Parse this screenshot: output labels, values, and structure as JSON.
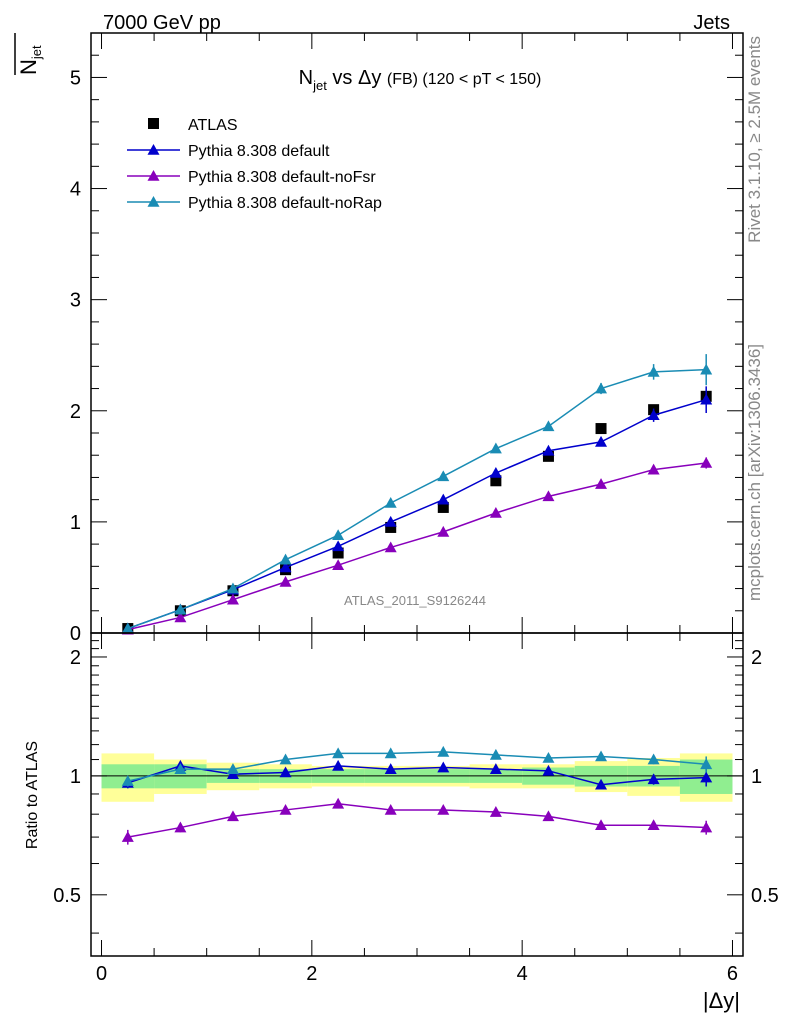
{
  "header": {
    "left": "7000 GeV pp",
    "right": "Jets"
  },
  "side_labels": {
    "rivet": "Rivet 3.1.10, ≥ 2.5M events",
    "mcplots": "mcplots.cern.ch [arXiv:1306.3436]"
  },
  "chart_data": [
    {
      "type": "scatter",
      "panel": "main",
      "title_parts": {
        "n": "N",
        "sub": "jet",
        "vs": " vs Δy ",
        "small": "(FB)",
        "range": " (120 < pT < 150)"
      },
      "ylabel_parts": {
        "n": "N",
        "sub": "jet"
      },
      "watermark": "ATLAS_2011_S9126244",
      "xlim": [
        -0.1,
        6.1
      ],
      "ylim": [
        0,
        5.4
      ],
      "yticks": [
        0,
        1,
        2,
        3,
        4,
        5
      ],
      "ytick_labels": [
        "0",
        "1",
        "2",
        "3",
        "4",
        "5"
      ],
      "legend_position": "top-left",
      "x": [
        0.25,
        0.75,
        1.25,
        1.75,
        2.25,
        2.75,
        3.25,
        3.75,
        4.25,
        4.75,
        5.25,
        5.75
      ],
      "series": [
        {
          "name": "ATLAS",
          "marker": "square",
          "color": "#000000",
          "values": [
            0.04,
            0.2,
            0.38,
            0.57,
            0.72,
            0.95,
            1.13,
            1.37,
            1.59,
            1.84,
            2.01,
            2.13
          ],
          "errors": [
            0.01,
            0.01,
            0.01,
            0.01,
            0.01,
            0.01,
            0.01,
            0.02,
            0.02,
            0.02,
            0.03,
            0.05
          ]
        },
        {
          "name": "Pythia 8.308 default",
          "marker": "triangle",
          "color": "#0000cc",
          "values": [
            0.04,
            0.21,
            0.39,
            0.59,
            0.78,
            1.0,
            1.2,
            1.44,
            1.64,
            1.72,
            1.96,
            2.1
          ],
          "errors": [
            0.01,
            0.01,
            0.01,
            0.02,
            0.02,
            0.02,
            0.02,
            0.03,
            0.03,
            0.04,
            0.06,
            0.12
          ]
        },
        {
          "name": "Pythia 8.308 default-noFsr",
          "marker": "triangle",
          "color": "#8800bb",
          "values": [
            0.03,
            0.14,
            0.3,
            0.46,
            0.61,
            0.77,
            0.91,
            1.08,
            1.23,
            1.34,
            1.47,
            1.53
          ],
          "errors": [
            0.005,
            0.01,
            0.01,
            0.01,
            0.01,
            0.02,
            0.02,
            0.02,
            0.03,
            0.03,
            0.04,
            0.05
          ]
        },
        {
          "name": "Pythia 8.308 default-noRap",
          "marker": "triangle",
          "color": "#1a8cb4",
          "values": [
            0.04,
            0.21,
            0.4,
            0.66,
            0.88,
            1.17,
            1.41,
            1.66,
            1.86,
            2.2,
            2.35,
            2.37
          ],
          "errors": [
            0.01,
            0.01,
            0.01,
            0.02,
            0.02,
            0.02,
            0.03,
            0.03,
            0.03,
            0.05,
            0.07,
            0.14
          ]
        }
      ]
    },
    {
      "type": "line",
      "panel": "ratio",
      "ylabel": "Ratio to ATLAS",
      "xlabel": "|Δy|",
      "xlim": [
        -0.1,
        6.1
      ],
      "ylim": [
        0.35,
        2.3
      ],
      "xticks": [
        0,
        2,
        4,
        6
      ],
      "xtick_labels": [
        "0",
        "2",
        "4",
        "6"
      ],
      "yticks": [
        0.5,
        1,
        2
      ],
      "ytick_labels": [
        "0.5",
        "1",
        "2"
      ],
      "band_edges": [
        0,
        0.5,
        1.0,
        1.5,
        2.0,
        2.5,
        3.0,
        3.5,
        4.0,
        4.5,
        5.0,
        5.5,
        6.0
      ],
      "band_inner": [
        0.07,
        0.07,
        0.04,
        0.04,
        0.04,
        0.04,
        0.04,
        0.04,
        0.05,
        0.06,
        0.06,
        0.1
      ],
      "band_outer": [
        0.14,
        0.1,
        0.08,
        0.07,
        0.06,
        0.06,
        0.06,
        0.07,
        0.07,
        0.09,
        0.11,
        0.14
      ],
      "band_colors": {
        "inner": "#90ee90",
        "outer": "#ffff99"
      },
      "x": [
        0.25,
        0.75,
        1.25,
        1.75,
        2.25,
        2.75,
        3.25,
        3.75,
        4.25,
        4.75,
        5.25,
        5.75
      ],
      "series": [
        {
          "name": "Pythia 8.308 default",
          "color": "#0000cc",
          "values": [
            0.96,
            1.06,
            1.01,
            1.02,
            1.06,
            1.04,
            1.05,
            1.04,
            1.03,
            0.95,
            0.98,
            0.99
          ],
          "errors": [
            0.03,
            0.02,
            0.01,
            0.01,
            0.01,
            0.01,
            0.01,
            0.01,
            0.01,
            0.02,
            0.03,
            0.05
          ]
        },
        {
          "name": "Pythia 8.308 default-noFsr",
          "color": "#8800bb",
          "values": [
            0.7,
            0.74,
            0.79,
            0.82,
            0.85,
            0.82,
            0.82,
            0.81,
            0.79,
            0.75,
            0.75,
            0.74
          ],
          "errors": [
            0.03,
            0.02,
            0.01,
            0.01,
            0.01,
            0.01,
            0.01,
            0.01,
            0.01,
            0.02,
            0.02,
            0.03
          ]
        },
        {
          "name": "Pythia 8.308 default-noRap",
          "color": "#1a8cb4",
          "values": [
            0.97,
            1.04,
            1.04,
            1.1,
            1.14,
            1.14,
            1.15,
            1.13,
            1.11,
            1.12,
            1.1,
            1.07
          ],
          "errors": [
            0.03,
            0.02,
            0.01,
            0.01,
            0.01,
            0.01,
            0.01,
            0.01,
            0.01,
            0.02,
            0.03,
            0.05
          ]
        }
      ]
    }
  ]
}
